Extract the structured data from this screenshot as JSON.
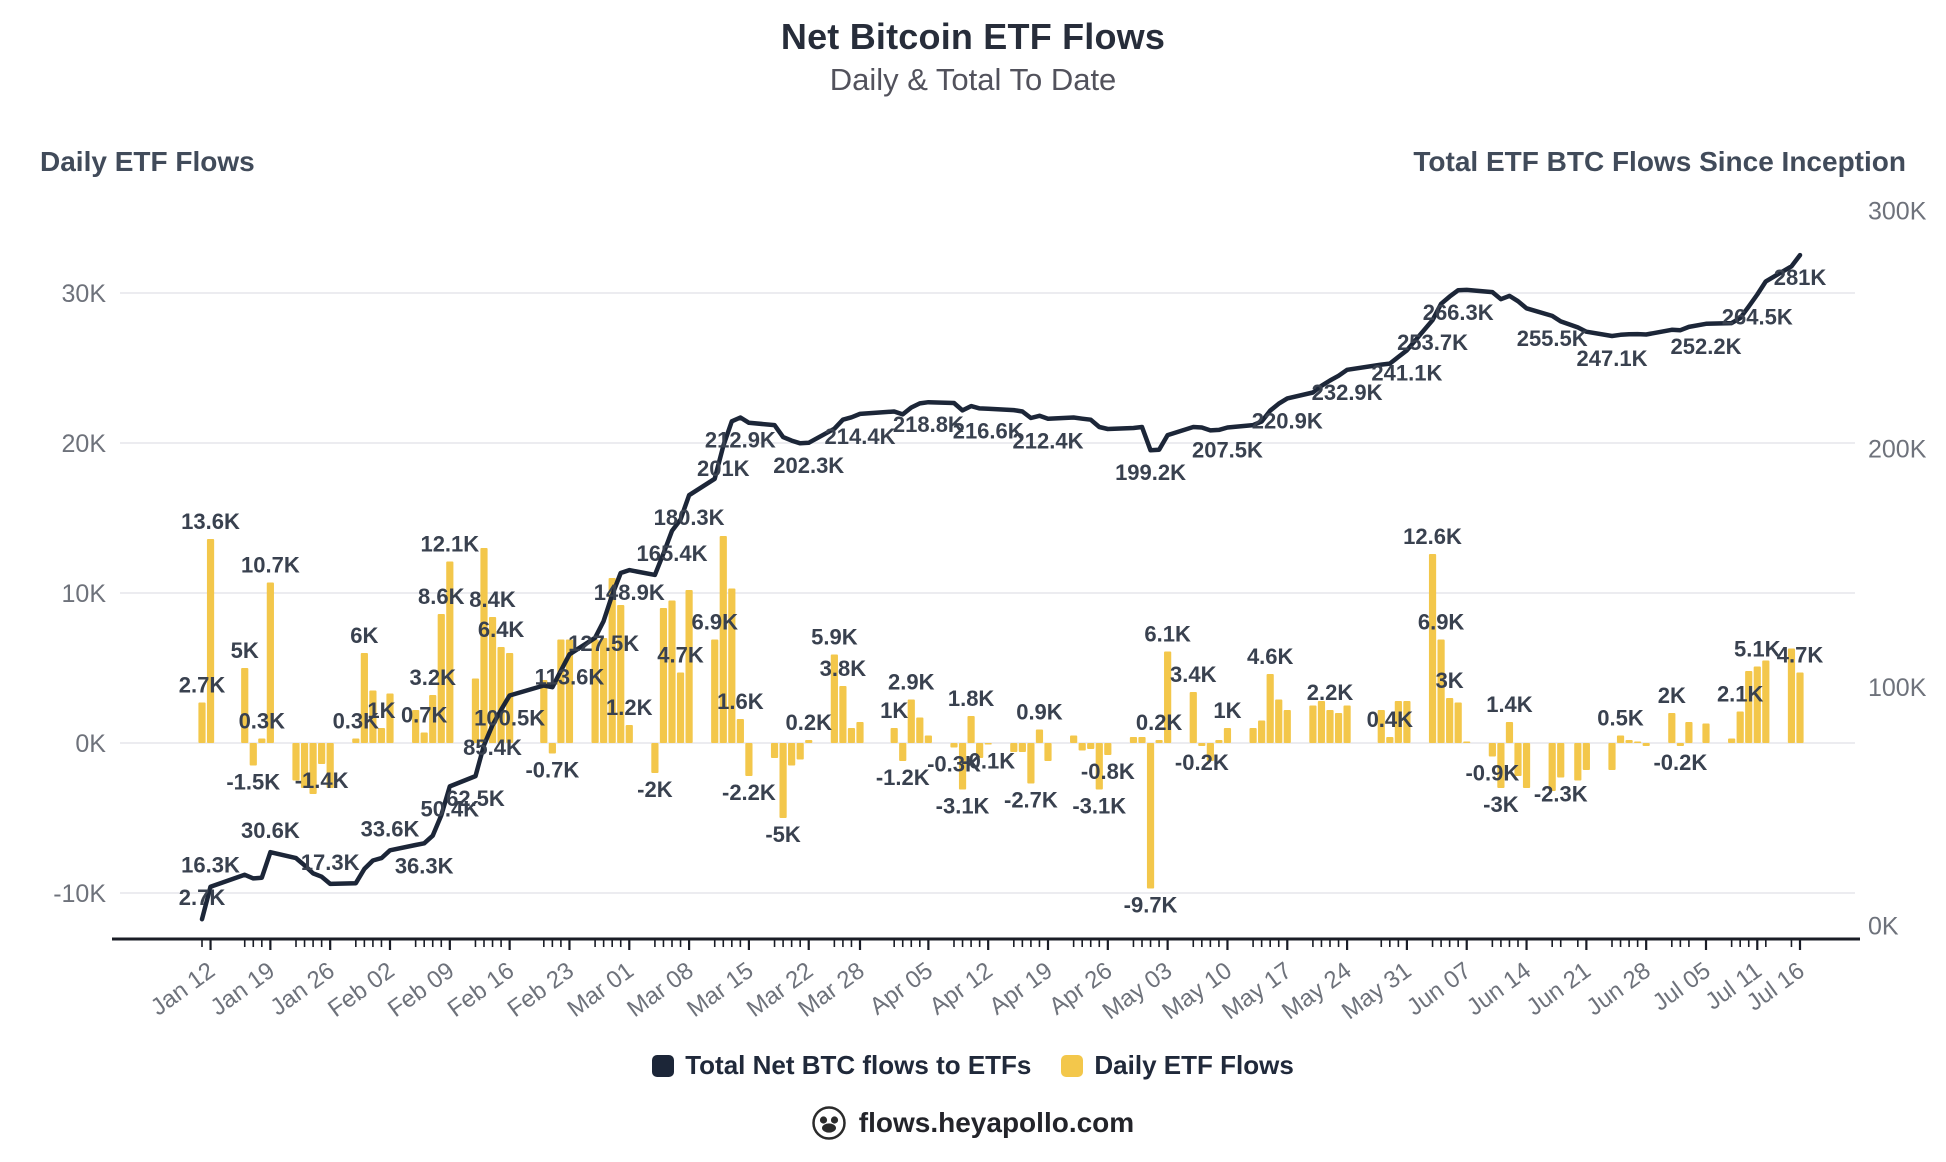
{
  "header": {
    "title": "Net Bitcoin ETF Flows",
    "subtitle": "Daily & Total To Date"
  },
  "panel_titles": {
    "left": "Daily ETF Flows",
    "right": "Total ETF BTC Flows Since Inception"
  },
  "legend": {
    "items": [
      {
        "label": "Total Net BTC flows to ETFs",
        "color": "#1C2638"
      },
      {
        "label": "Daily ETF Flows",
        "color": "#F3C74B"
      }
    ]
  },
  "footer": {
    "brand": "flows.heyapollo.com"
  },
  "colors": {
    "bar": "#F3C74B",
    "line": "#1C2638",
    "grid": "#ECECF0",
    "axis": "#1A1D26",
    "data_label": "#39414F",
    "tick_text": "#6E727B"
  },
  "chart_data": {
    "type": "bar+line",
    "title": "Net Bitcoin ETF Flows",
    "subtitle": "Daily & Total To Date",
    "bar_series_name": "Daily ETF Flows",
    "line_series_name": "Total Net BTC flows to ETFs",
    "units": "K BTC",
    "left_axis": {
      "title": "Daily ETF Flows",
      "ticks": [
        {
          "label": "30K",
          "v": 30
        },
        {
          "label": "20K",
          "v": 20
        },
        {
          "label": "10K",
          "v": 10
        },
        {
          "label": "0K",
          "v": 0
        },
        {
          "label": "-10K",
          "v": -10
        }
      ],
      "range": [
        -13,
        35
      ]
    },
    "right_axis": {
      "title": "Total ETF BTC Flows Since Inception",
      "ticks": [
        {
          "label": "300K",
          "v": 300
        },
        {
          "label": "200K",
          "v": 200
        },
        {
          "label": "100K",
          "v": 100
        },
        {
          "label": "0K",
          "v": 0
        }
      ],
      "range": [
        0,
        300
      ]
    },
    "x_ticks": [
      "Jan 12",
      "Jan 19",
      "Jan 26",
      "Feb 02",
      "Feb 09",
      "Feb 16",
      "Feb 23",
      "Mar 01",
      "Mar 08",
      "Mar 15",
      "Mar 22",
      "Mar 28",
      "Apr 05",
      "Apr 12",
      "Apr 19",
      "Apr 26",
      "May 03",
      "May 10",
      "May 17",
      "May 24",
      "May 31",
      "Jun 07",
      "Jun 14",
      "Jun 21",
      "Jun 28",
      "Jul 05",
      "Jul 11",
      "Jul 16"
    ],
    "days_format": [
      "date",
      "daily_flow_K",
      "bar_label",
      "line_label",
      "line_label_pos(a=above,b=below)"
    ],
    "days": [
      [
        "Jan 11",
        2.7,
        "2.7K",
        "2.7K",
        "a"
      ],
      [
        "Jan 12",
        13.6,
        "13.6K",
        "16.3K",
        "a"
      ],
      [
        "Jan 16",
        5.0,
        "5K",
        null,
        null
      ],
      [
        "Jan 17",
        -1.5,
        "-1.5K",
        null,
        null
      ],
      [
        "Jan 18",
        0.3,
        "0.3K",
        null,
        null
      ],
      [
        "Jan 19",
        10.7,
        "10.7K",
        "30.6K",
        "a"
      ],
      [
        "Jan 22",
        -2.5,
        null,
        null,
        null
      ],
      [
        "Jan 23",
        -3.0,
        null,
        null,
        null
      ],
      [
        "Jan 24",
        -3.4,
        null,
        null,
        null
      ],
      [
        "Jan 25",
        -1.4,
        "-1.4K",
        null,
        null
      ],
      [
        "Jan 26",
        -3.0,
        null,
        "17.3K",
        "a"
      ],
      [
        "Jan 29",
        0.3,
        "0.3K",
        null,
        null
      ],
      [
        "Jan 30",
        6.0,
        "6K",
        null,
        null
      ],
      [
        "Jan 31",
        3.5,
        null,
        null,
        null
      ],
      [
        "Feb 01",
        1.0,
        "1K",
        null,
        null
      ],
      [
        "Feb 02",
        3.3,
        null,
        "33.6K",
        "a"
      ],
      [
        "Feb 05",
        2.2,
        null,
        null,
        null
      ],
      [
        "Feb 06",
        0.7,
        "0.7K",
        "36.3K",
        "b"
      ],
      [
        "Feb 07",
        3.2,
        "3.2K",
        null,
        null
      ],
      [
        "Feb 08",
        8.6,
        "8.6K",
        null,
        null
      ],
      [
        "Feb 09",
        12.1,
        "12.1K",
        "50.4K",
        "b"
      ],
      [
        "Feb 12",
        4.3,
        null,
        "62.5K",
        "b"
      ],
      [
        "Feb 13",
        13.0,
        null,
        null,
        null
      ],
      [
        "Feb 14",
        8.4,
        "8.4K",
        "85.4K",
        "b"
      ],
      [
        "Feb 15",
        6.4,
        "6.4K",
        null,
        null
      ],
      [
        "Feb 16",
        6.0,
        null,
        "100.5K",
        "b"
      ],
      [
        "Feb 20",
        4.2,
        null,
        null,
        null
      ],
      [
        "Feb 21",
        -0.7,
        "-0.7K",
        null,
        null
      ],
      [
        "Feb 22",
        6.9,
        null,
        null,
        null
      ],
      [
        "Feb 23",
        6.9,
        null,
        "113.6K",
        "b"
      ],
      [
        "Feb 26",
        6.9,
        null,
        null,
        null
      ],
      [
        "Feb 27",
        7.0,
        null,
        "127.5K",
        "b"
      ],
      [
        "Feb 28",
        11.0,
        null,
        null,
        null
      ],
      [
        "Feb 29",
        9.2,
        null,
        null,
        null
      ],
      [
        "Mar 01",
        1.2,
        "1.2K",
        "148.9K",
        "b"
      ],
      [
        "Mar 04",
        -2.0,
        "-2K",
        null,
        null
      ],
      [
        "Mar 05",
        9.0,
        null,
        null,
        null
      ],
      [
        "Mar 06",
        9.5,
        null,
        "165.4K",
        "b"
      ],
      [
        "Mar 07",
        4.7,
        "4.7K",
        null,
        null
      ],
      [
        "Mar 08",
        10.2,
        null,
        "180.3K",
        "b"
      ],
      [
        "Mar 11",
        6.9,
        "6.9K",
        null,
        null
      ],
      [
        "Mar 12",
        13.8,
        null,
        "201K",
        "b"
      ],
      [
        "Mar 13",
        10.3,
        null,
        null,
        null
      ],
      [
        "Mar 14",
        1.6,
        "1.6K",
        "212.9K",
        "b"
      ],
      [
        "Mar 15",
        -2.2,
        "-2.2K",
        null,
        null
      ],
      [
        "Mar 18",
        -1.0,
        null,
        null,
        null
      ],
      [
        "Mar 19",
        -5.0,
        "-5K",
        null,
        null
      ],
      [
        "Mar 20",
        -1.5,
        null,
        null,
        null
      ],
      [
        "Mar 21",
        -1.1,
        null,
        null,
        null
      ],
      [
        "Mar 22",
        0.2,
        "0.2K",
        "202.3K",
        "b"
      ],
      [
        "Mar 25",
        5.9,
        "5.9K",
        null,
        null
      ],
      [
        "Mar 26",
        3.8,
        "3.8K",
        null,
        null
      ],
      [
        "Mar 27",
        1.0,
        null,
        null,
        null
      ],
      [
        "Mar 28",
        1.4,
        null,
        "214.4K",
        "b"
      ],
      [
        "Apr 01",
        1.0,
        "1K",
        null,
        null
      ],
      [
        "Apr 02",
        -1.2,
        "-1.2K",
        null,
        null
      ],
      [
        "Apr 03",
        2.9,
        "2.9K",
        null,
        null
      ],
      [
        "Apr 04",
        1.7,
        null,
        null,
        null
      ],
      [
        "Apr 05",
        0.5,
        null,
        "218.8K",
        "b"
      ],
      [
        "Apr 08",
        -0.3,
        "-0.3K",
        null,
        null
      ],
      [
        "Apr 09",
        -3.1,
        "-3.1K",
        null,
        null
      ],
      [
        "Apr 10",
        1.8,
        "1.8K",
        null,
        null
      ],
      [
        "Apr 11",
        -1.0,
        null,
        null,
        null
      ],
      [
        "Apr 12",
        -0.1,
        "-0.1K",
        "216.6K",
        "b"
      ],
      [
        "Apr 15",
        -0.6,
        null,
        null,
        null
      ],
      [
        "Apr 16",
        -0.6,
        null,
        null,
        null
      ],
      [
        "Apr 17",
        -2.7,
        "-2.7K",
        null,
        null
      ],
      [
        "Apr 18",
        0.9,
        "0.9K",
        null,
        null
      ],
      [
        "Apr 19",
        -1.2,
        null,
        "212.4K",
        "b"
      ],
      [
        "Apr 22",
        0.5,
        null,
        null,
        null
      ],
      [
        "Apr 23",
        -0.5,
        null,
        null,
        null
      ],
      [
        "Apr 24",
        -0.4,
        null,
        null,
        null
      ],
      [
        "Apr 25",
        -3.1,
        "-3.1K",
        null,
        null
      ],
      [
        "Apr 26",
        -0.8,
        "-0.8K",
        null,
        null
      ],
      [
        "Apr 29",
        0.4,
        null,
        null,
        null
      ],
      [
        "Apr 30",
        0.4,
        null,
        null,
        null
      ],
      [
        "May 01",
        -9.7,
        "-9.7K",
        "199.2K",
        "b"
      ],
      [
        "May 02",
        0.2,
        "0.2K",
        null,
        null
      ],
      [
        "May 03",
        6.1,
        "6.1K",
        null,
        null
      ],
      [
        "May 06",
        3.4,
        "3.4K",
        null,
        null
      ],
      [
        "May 07",
        -0.2,
        "-0.2K",
        null,
        null
      ],
      [
        "May 08",
        -1.2,
        null,
        null,
        null
      ],
      [
        "May 09",
        0.2,
        null,
        null,
        null
      ],
      [
        "May 10",
        1.0,
        "1K",
        "207.5K",
        "b"
      ],
      [
        "May 13",
        1.0,
        null,
        null,
        null
      ],
      [
        "May 14",
        1.5,
        null,
        null,
        null
      ],
      [
        "May 15",
        4.6,
        "4.6K",
        null,
        null
      ],
      [
        "May 16",
        2.9,
        null,
        null,
        null
      ],
      [
        "May 17",
        2.2,
        null,
        "220.9K",
        "b"
      ],
      [
        "May 20",
        2.5,
        null,
        null,
        null
      ],
      [
        "May 21",
        2.8,
        null,
        null,
        null
      ],
      [
        "May 22",
        2.2,
        "2.2K",
        null,
        null
      ],
      [
        "May 23",
        2.0,
        null,
        null,
        null
      ],
      [
        "May 24",
        2.5,
        null,
        "232.9K",
        "b"
      ],
      [
        "May 28",
        2.2,
        null,
        null,
        null
      ],
      [
        "May 29",
        0.4,
        "0.4K",
        null,
        null
      ],
      [
        "May 30",
        2.8,
        null,
        null,
        null
      ],
      [
        "May 31",
        2.8,
        null,
        "241.1K",
        "b"
      ],
      [
        "Jun 03",
        12.6,
        "12.6K",
        "253.7K",
        "b"
      ],
      [
        "Jun 04",
        6.9,
        "6.9K",
        null,
        null
      ],
      [
        "Jun 05",
        3.0,
        "3K",
        null,
        null
      ],
      [
        "Jun 06",
        2.7,
        null,
        "266.3K",
        "b"
      ],
      [
        "Jun 07",
        0.1,
        null,
        null,
        null
      ],
      [
        "Jun 10",
        -0.9,
        "-0.9K",
        null,
        null
      ],
      [
        "Jun 11",
        -3.0,
        "-3K",
        null,
        null
      ],
      [
        "Jun 12",
        1.4,
        "1.4K",
        null,
        null
      ],
      [
        "Jun 13",
        -2.2,
        null,
        null,
        null
      ],
      [
        "Jun 14",
        -3.0,
        null,
        null,
        null
      ],
      [
        "Jun 17",
        -3.2,
        null,
        "255.5K",
        "b"
      ],
      [
        "Jun 18",
        -2.3,
        "-2.3K",
        null,
        null
      ],
      [
        "Jun 20",
        -2.5,
        null,
        null,
        null
      ],
      [
        "Jun 21",
        -1.8,
        null,
        null,
        null
      ],
      [
        "Jun 24",
        -1.8,
        null,
        "247.1K",
        "b"
      ],
      [
        "Jun 25",
        0.5,
        "0.5K",
        null,
        null
      ],
      [
        "Jun 26",
        0.2,
        null,
        null,
        null
      ],
      [
        "Jun 27",
        0.1,
        null,
        null,
        null
      ],
      [
        "Jun 28",
        -0.2,
        null,
        null,
        null
      ],
      [
        "Jul 01",
        2.0,
        "2K",
        null,
        null
      ],
      [
        "Jul 02",
        -0.2,
        "-0.2K",
        null,
        null
      ],
      [
        "Jul 03",
        1.4,
        null,
        null,
        null
      ],
      [
        "Jul 05",
        1.3,
        null,
        "252.2K",
        "b"
      ],
      [
        "Jul 08",
        0.3,
        null,
        null,
        null
      ],
      [
        "Jul 09",
        2.1,
        "2.1K",
        null,
        null
      ],
      [
        "Jul 10",
        4.8,
        null,
        null,
        null
      ],
      [
        "Jul 11",
        5.1,
        "5.1K",
        "264.5K",
        "b"
      ],
      [
        "Jul 12",
        5.5,
        null,
        null,
        null
      ],
      [
        "Jul 15",
        6.3,
        null,
        null,
        null
      ],
      [
        "Jul 16",
        4.7,
        "4.7K",
        "281K",
        "b"
      ]
    ]
  }
}
